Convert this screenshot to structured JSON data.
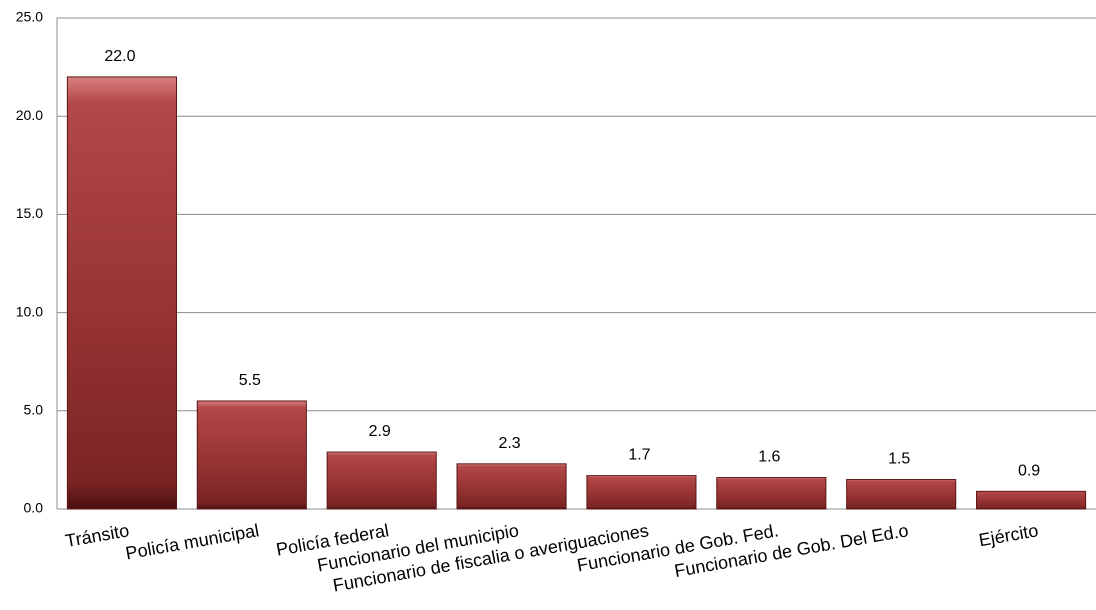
{
  "chart_data": {
    "type": "bar",
    "categories": [
      "Tránsito",
      "Policía municipal",
      "Policía federal",
      "Funcionario del municipio",
      "Funcionario de fiscalia o averiguaciones",
      "Funcionario de Gob. Fed.",
      "Funcionario de Gob. Del Ed.o",
      "Ejército"
    ],
    "values": [
      22.0,
      5.5,
      2.9,
      2.3,
      1.7,
      1.6,
      1.5,
      0.9
    ],
    "value_labels": [
      "22.0",
      "5.5",
      "2.9",
      "2.3",
      "1.7",
      "1.6",
      "1.5",
      "0.9"
    ],
    "color": "#a23b3b",
    "ylim": [
      0,
      25
    ],
    "yticks": [
      {
        "value": 0,
        "label": "0.0"
      },
      {
        "value": 5,
        "label": "5.0"
      },
      {
        "value": 10,
        "label": "10.0"
      },
      {
        "value": 15,
        "label": "15.0"
      },
      {
        "value": 20,
        "label": "20.0"
      },
      {
        "value": 25,
        "label": "25.0"
      }
    ],
    "grid": true
  }
}
